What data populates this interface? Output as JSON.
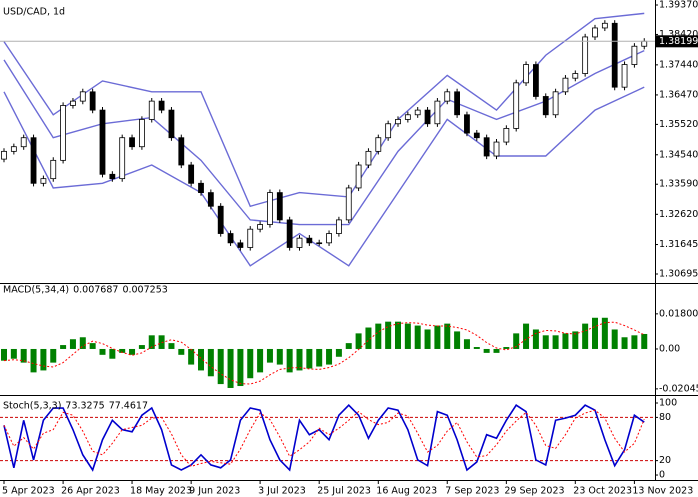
{
  "chart_data": [
    {
      "type": "candlestick",
      "title": "USD/CAD, 1d",
      "categories": [
        "5 Apr 2023",
        null,
        null,
        null,
        null,
        null,
        "26 Apr 2023",
        null,
        null,
        null,
        null,
        null,
        null,
        "18 May 2023",
        null,
        null,
        null,
        null,
        null,
        "9 Jun 2023",
        null,
        null,
        null,
        null,
        null,
        null,
        "3 Jul 2023",
        null,
        null,
        null,
        null,
        null,
        "25 Jul 2023",
        null,
        null,
        null,
        null,
        null,
        "16 Aug 2023",
        null,
        null,
        null,
        null,
        null,
        null,
        "7 Sep 2023",
        null,
        null,
        null,
        null,
        null,
        "29 Sep 2023",
        null,
        null,
        null,
        null,
        null,
        null,
        "23 Oct 2023",
        null,
        null,
        null,
        null,
        null,
        "13 Nov 2023",
        null
      ],
      "open": [
        1.344,
        1.3465,
        1.348,
        1.3509,
        1.3362,
        1.3377,
        1.3436,
        1.3613,
        1.3627,
        1.3657,
        1.3598,
        1.3391,
        1.3377,
        1.3509,
        1.348,
        1.3568,
        1.3627,
        1.3598,
        1.3509,
        1.3421,
        1.3362,
        1.3332,
        1.3288,
        1.32,
        1.317,
        1.3155,
        1.3214,
        1.3229,
        1.3332,
        1.3244,
        1.3155,
        1.3185,
        1.317,
        1.317,
        1.32,
        1.3244,
        1.3347,
        1.3421,
        1.3465,
        1.3509,
        1.3554,
        1.3568,
        1.3583,
        1.3598,
        1.3554,
        1.3627,
        1.3657,
        1.3583,
        1.3524,
        1.3509,
        1.345,
        1.3495,
        1.3539,
        1.3686,
        1.3745,
        1.3642,
        1.3583,
        1.3657,
        1.3701,
        1.3716,
        1.3834,
        1.3863,
        1.3878,
        1.3672,
        1.3745,
        1.3804
      ],
      "high": [
        1.3475,
        1.349,
        1.3519,
        1.3519,
        1.3387,
        1.3446,
        1.3623,
        1.3637,
        1.3667,
        1.3667,
        1.3608,
        1.3401,
        1.3519,
        1.3519,
        1.3578,
        1.3637,
        1.3637,
        1.3608,
        1.3519,
        1.3431,
        1.3372,
        1.3342,
        1.3298,
        1.321,
        1.318,
        1.3224,
        1.3239,
        1.3342,
        1.3342,
        1.3254,
        1.3195,
        1.3195,
        1.318,
        1.321,
        1.3254,
        1.3357,
        1.3431,
        1.3475,
        1.3519,
        1.3564,
        1.3578,
        1.3593,
        1.3608,
        1.3608,
        1.3637,
        1.3667,
        1.3667,
        1.3593,
        1.3534,
        1.3519,
        1.3505,
        1.3549,
        1.3696,
        1.3755,
        1.3755,
        1.3652,
        1.3667,
        1.3711,
        1.3726,
        1.3844,
        1.3873,
        1.3888,
        1.3888,
        1.3755,
        1.3814,
        1.383
      ],
      "low": [
        1.343,
        1.3455,
        1.347,
        1.3352,
        1.3352,
        1.3367,
        1.3426,
        1.3603,
        1.3617,
        1.3588,
        1.3381,
        1.3367,
        1.3367,
        1.347,
        1.347,
        1.3558,
        1.3588,
        1.3499,
        1.3411,
        1.3352,
        1.3322,
        1.3278,
        1.319,
        1.316,
        1.3145,
        1.3145,
        1.3204,
        1.3219,
        1.3234,
        1.3145,
        1.3145,
        1.316,
        1.316,
        1.316,
        1.319,
        1.3234,
        1.3337,
        1.3411,
        1.3455,
        1.3499,
        1.3544,
        1.3558,
        1.3573,
        1.3544,
        1.3544,
        1.3617,
        1.3573,
        1.3514,
        1.3499,
        1.344,
        1.344,
        1.3485,
        1.3529,
        1.3676,
        1.3632,
        1.3573,
        1.3573,
        1.3647,
        1.3691,
        1.3706,
        1.3824,
        1.3853,
        1.3662,
        1.3662,
        1.3735,
        1.3794
      ],
      "close": [
        1.3465,
        1.348,
        1.3509,
        1.3362,
        1.3377,
        1.3436,
        1.3613,
        1.3627,
        1.3657,
        1.3598,
        1.3391,
        1.3377,
        1.3509,
        1.348,
        1.3568,
        1.3627,
        1.3598,
        1.3509,
        1.3421,
        1.3362,
        1.3332,
        1.3288,
        1.32,
        1.317,
        1.3155,
        1.3214,
        1.3229,
        1.3332,
        1.3244,
        1.3155,
        1.3185,
        1.317,
        1.317,
        1.32,
        1.3244,
        1.3347,
        1.3421,
        1.3465,
        1.3509,
        1.3554,
        1.3568,
        1.3583,
        1.3598,
        1.3554,
        1.3627,
        1.3657,
        1.3583,
        1.3524,
        1.3509,
        1.345,
        1.3495,
        1.3539,
        1.3686,
        1.3745,
        1.3642,
        1.3583,
        1.3657,
        1.3701,
        1.3716,
        1.3834,
        1.3863,
        1.3878,
        1.3672,
        1.3745,
        1.3804,
        1.38199
      ],
      "color_up": "#ffffff",
      "color_down": "#000000",
      "bands": {
        "color": "#6b6bd6",
        "x": [
          0,
          5,
          10,
          15,
          20,
          25,
          30,
          35,
          40,
          45,
          50,
          55,
          60,
          65
        ],
        "upper": [
          1.3819,
          1.3583,
          1.3692,
          1.3657,
          1.3657,
          1.3288,
          1.3332,
          1.3318,
          1.3568,
          1.371,
          1.3598,
          1.3775,
          1.3893,
          1.391
        ],
        "middle": [
          1.376,
          1.3509,
          1.3554,
          1.3574,
          1.3436,
          1.3244,
          1.3229,
          1.3229,
          1.3465,
          1.3633,
          1.3568,
          1.3627,
          1.3716,
          1.379
        ],
        "lower": [
          1.3657,
          1.3347,
          1.3362,
          1.3421,
          1.3332,
          1.3096,
          1.32,
          1.3096,
          1.3332,
          1.3568,
          1.345,
          1.345,
          1.3598,
          1.3672
        ]
      },
      "ylim": [
        1.30695,
        1.3937
      ],
      "yticks": [
        {
          "value": 1.3937,
          "label": "1.39370"
        },
        {
          "value": 1.3842,
          "label": "1.38420"
        },
        {
          "value": 1.3744,
          "label": "1.37440"
        },
        {
          "value": 1.3647,
          "label": "1.36470"
        },
        {
          "value": 1.3552,
          "label": "1.35520"
        },
        {
          "value": 1.3454,
          "label": "1.34540"
        },
        {
          "value": 1.3359,
          "label": "1.33590"
        },
        {
          "value": 1.3262,
          "label": "1.32620"
        },
        1.31645,
        1.30695
      ]
    },
    {
      "type": "bar",
      "title": "MACD(5,34,4)",
      "series": [
        {
          "color": "#008000",
          "values": [
            -0.006,
            -0.005,
            -0.007,
            -0.012,
            -0.011,
            -0.007,
            0.002,
            0.005,
            0.006,
            0.003,
            -0.003,
            -0.005,
            -0.002,
            -0.003,
            0.002,
            0.007,
            0.007,
            0.003,
            -0.003,
            -0.008,
            -0.011,
            -0.014,
            -0.018,
            -0.02,
            -0.019,
            -0.015,
            -0.012,
            -0.007,
            -0.008,
            -0.012,
            -0.011,
            -0.01,
            -0.009,
            -0.008,
            -0.004,
            0.003,
            0.008,
            0.011,
            0.013,
            0.014,
            0.014,
            0.013,
            0.012,
            0.01,
            0.012,
            0.013,
            0.009,
            0.005,
            0.001,
            -0.002,
            -0.002,
            0.001,
            0.008,
            0.013,
            0.01,
            0.007,
            0.007,
            0.008,
            0.009,
            0.013,
            0.016,
            0.016,
            0.01,
            0.006,
            0.007,
            0.007687
          ]
        },
        {
          "color": "#ff0000",
          "dash": true,
          "values": [
            -0.006,
            -0.0055,
            -0.006,
            -0.0075,
            -0.00875,
            -0.00925,
            -0.007,
            -0.00275,
            0.0015,
            0.004,
            0.00275,
            0.00025,
            -0.00175,
            -0.00325,
            -0.002,
            0.001,
            0.00325,
            0.00475,
            0.0035,
            -0.00025,
            -0.00475,
            -0.009,
            -0.01275,
            -0.01575,
            -0.01775,
            -0.018,
            -0.0165,
            -0.01325,
            -0.0105,
            -0.00975,
            -0.0095,
            -0.01025,
            -0.0105,
            -0.0095,
            -0.00775,
            -0.0045,
            -0.00025,
            0.0045,
            0.00875,
            0.0115,
            0.013,
            0.0135,
            0.01325,
            0.01225,
            0.01175,
            0.01175,
            0.011,
            0.00975,
            0.007,
            0.00325,
            0.0005,
            -0.0005,
            0.00125,
            0.005,
            0.008,
            0.0095,
            0.00925,
            0.008,
            0.00775,
            0.00925,
            0.0115,
            0.0135,
            0.01375,
            0.012,
            0.00975,
            0.007253
          ]
        }
      ],
      "ylim": [
        -0.0236,
        0.0328
      ],
      "yticks": [
        0.018009,
        {
          "value": 0,
          "label": "0.00"
        },
        -0.020458
      ]
    },
    {
      "type": "line",
      "title": "Stoch(5,3,3)",
      "series": [
        {
          "color": "#0000cd",
          "values": [
            69,
            10,
            76,
            21,
            76,
            93,
            93,
            63,
            28,
            7,
            49,
            76,
            63,
            60,
            83,
            93,
            63,
            14,
            7,
            14,
            28,
            14,
            10,
            21,
            76,
            93,
            90,
            49,
            21,
            7,
            76,
            56,
            63,
            49,
            83,
            97,
            83,
            51,
            76,
            93,
            90,
            63,
            21,
            13,
            88,
            83,
            49,
            7,
            18,
            56,
            51,
            76,
            97,
            88,
            21,
            14,
            76,
            79,
            83,
            97,
            90,
            49,
            13,
            35,
            83,
            73.3275
          ]
        },
        {
          "color": "#ff0000",
          "dash": true,
          "values": [
            69,
            40,
            52,
            36,
            58,
            63,
            87,
            83,
            61,
            33,
            28,
            44,
            63,
            66,
            69,
            79,
            80,
            57,
            28,
            12,
            16,
            19,
            17,
            15,
            36,
            63,
            86,
            77,
            53,
            26,
            35,
            46,
            65,
            56,
            65,
            76,
            88,
            77,
            70,
            73,
            86,
            82,
            58,
            32,
            41,
            61,
            73,
            46,
            25,
            27,
            42,
            61,
            75,
            87,
            69,
            41,
            37,
            56,
            79,
            86,
            90,
            79,
            51,
            32,
            44,
            77.4617
          ]
        }
      ],
      "levels": [
        20,
        80
      ],
      "level_color": "#cc0000",
      "ylim": [
        -6.9,
        109.7
      ],
      "yticks": [
        100,
        80,
        20,
        0
      ]
    }
  ]
}
